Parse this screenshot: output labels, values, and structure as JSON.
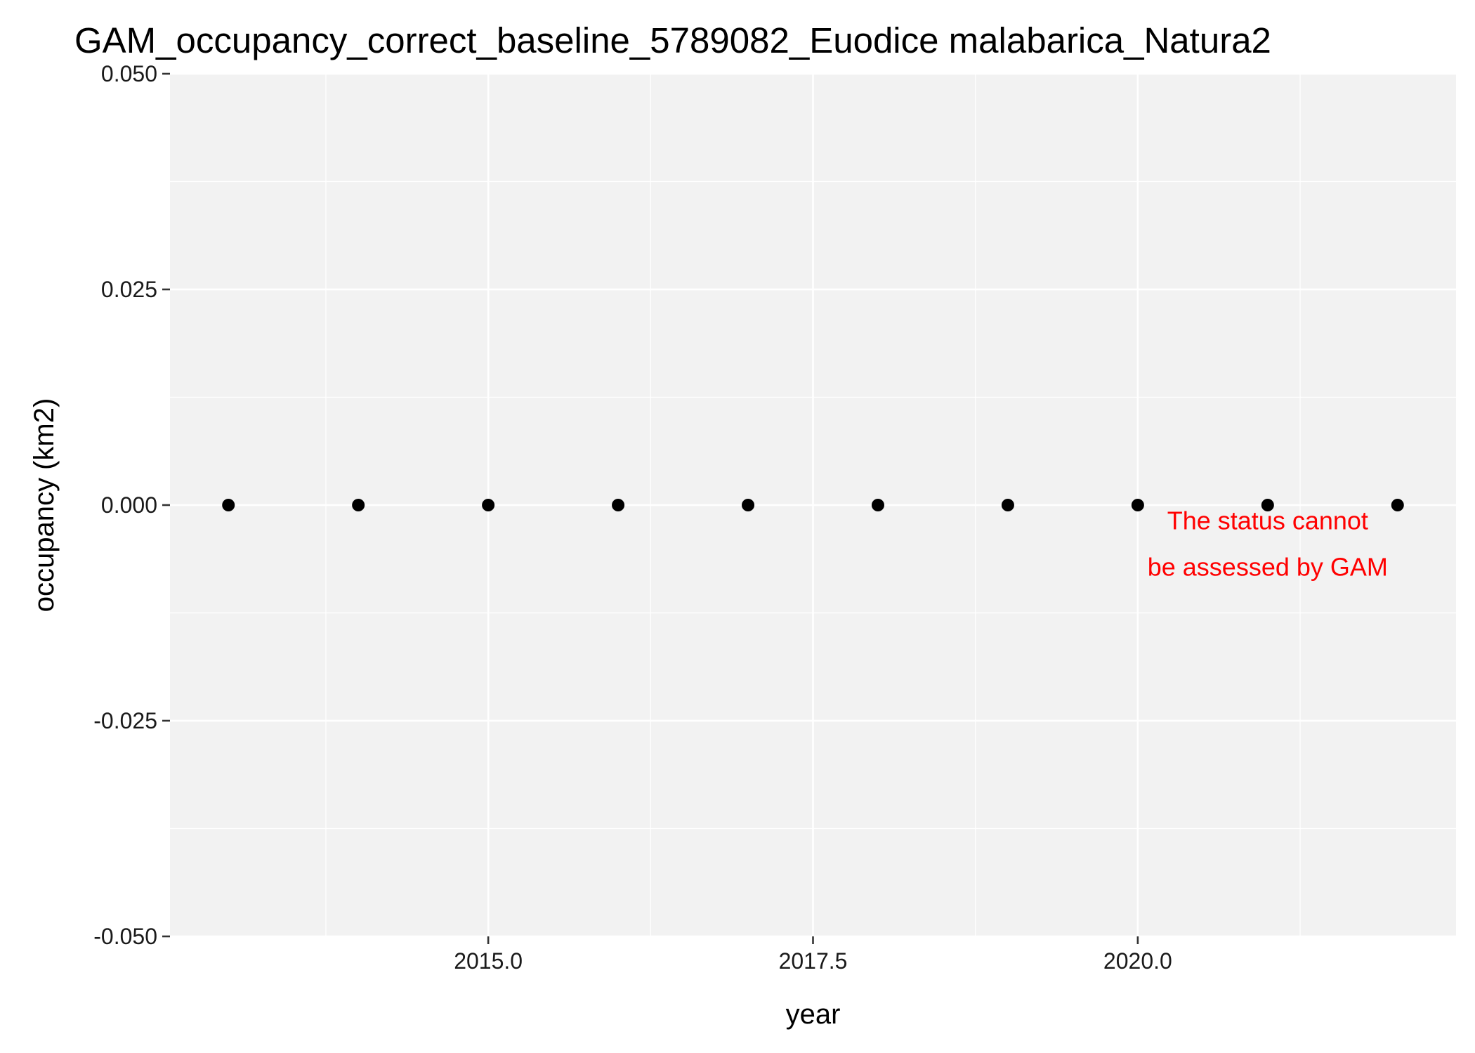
{
  "chart_data": {
    "type": "scatter",
    "title": "GAM_occupancy_correct_baseline_5789082_Euodice malabarica_Natura2",
    "xlabel": "year",
    "ylabel": "occupancy (km2)",
    "xlim": [
      2012.55,
      2022.45
    ],
    "ylim": [
      -0.05,
      0.05
    ],
    "x_ticks": [
      2015.0,
      2017.5,
      2020.0
    ],
    "x_tick_labels": [
      "2015.0",
      "2017.5",
      "2020.0"
    ],
    "x_minor_ticks": [
      2013.75,
      2016.25,
      2018.75,
      2021.25
    ],
    "y_ticks": [
      0.05,
      0.025,
      0.0,
      -0.025,
      -0.05
    ],
    "y_tick_labels": [
      "0.050",
      "0.025",
      "0.000",
      "-0.025",
      "-0.050"
    ],
    "y_minor_ticks": [
      0.0375,
      0.0125,
      -0.0125,
      -0.0375
    ],
    "grid": true,
    "point_color": "#000000",
    "panel_color": "#f2f2f2",
    "grid_color": "#ffffff",
    "points": [
      {
        "x": 2013,
        "y": 0
      },
      {
        "x": 2014,
        "y": 0
      },
      {
        "x": 2015,
        "y": 0
      },
      {
        "x": 2016,
        "y": 0
      },
      {
        "x": 2017,
        "y": 0
      },
      {
        "x": 2018,
        "y": 0
      },
      {
        "x": 2019,
        "y": 0
      },
      {
        "x": 2020,
        "y": 0
      },
      {
        "x": 2021,
        "y": 0
      },
      {
        "x": 2022,
        "y": 0
      }
    ],
    "annotation": {
      "lines": [
        "The status cannot",
        "be assessed by GAM"
      ],
      "x": 2021.0,
      "y": -0.0045,
      "color": "#ff0000"
    }
  }
}
